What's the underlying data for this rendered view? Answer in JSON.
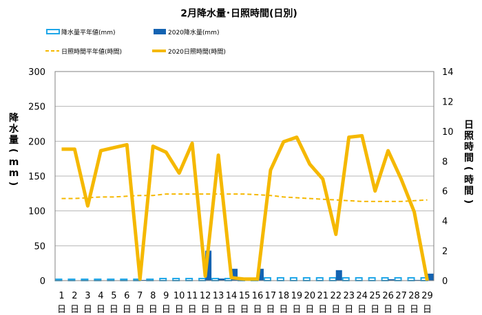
{
  "chart_data": {
    "type": "bar+line",
    "title": "2月降水量･日照時間(日別)",
    "xlabel": "",
    "ylabel": "降水量(mm)",
    "y2label": "日照時間(時間)",
    "ylim": [
      0,
      300
    ],
    "y2lim": [
      0,
      14
    ],
    "yticks": [
      "0",
      "50",
      "100",
      "150",
      "200",
      "250",
      "300"
    ],
    "y2ticks": [
      "0",
      "2",
      "4",
      "6",
      "8",
      "10",
      "12",
      "14"
    ],
    "categories": [
      "1",
      "2",
      "3",
      "4",
      "5",
      "6",
      "7",
      "8",
      "9",
      "10",
      "11",
      "12",
      "13",
      "14",
      "15",
      "16",
      "17",
      "18",
      "19",
      "20",
      "21",
      "22",
      "23",
      "24",
      "25",
      "26",
      "27",
      "28",
      "29"
    ],
    "day_suffix": "日",
    "legend_placement": "top",
    "grid": "horizontal",
    "series": [
      {
        "name": "降水量平年値(mm)",
        "type": "bar-outline",
        "axis": "left",
        "color": "#1ea6e8",
        "values": [
          2,
          2,
          2,
          2,
          2,
          2,
          2,
          2,
          3,
          3,
          3,
          3,
          3,
          3,
          3,
          3,
          4,
          4,
          4,
          4,
          4,
          4,
          4,
          4,
          4,
          4,
          4,
          4,
          4
        ]
      },
      {
        "name": "2020降水量(mm)",
        "type": "bar",
        "axis": "left",
        "color": "#1463b2",
        "values": [
          0,
          0,
          0,
          0,
          0,
          0,
          1,
          0,
          0,
          0,
          0,
          43,
          3,
          17,
          0,
          17,
          0,
          0,
          0,
          0,
          0,
          15,
          0,
          0,
          0,
          2,
          0,
          1,
          10
        ]
      },
      {
        "name": "日照時間平年値(時間)",
        "type": "line-dashed",
        "axis": "right",
        "color": "#f5b800",
        "values": [
          5.5,
          5.5,
          5.55,
          5.6,
          5.6,
          5.65,
          5.7,
          5.7,
          5.8,
          5.8,
          5.8,
          5.8,
          5.8,
          5.8,
          5.8,
          5.75,
          5.7,
          5.6,
          5.55,
          5.5,
          5.45,
          5.4,
          5.35,
          5.3,
          5.3,
          5.3,
          5.3,
          5.35,
          5.4
        ]
      },
      {
        "name": "2020日照時間(時間)",
        "type": "line",
        "axis": "right",
        "color": "#f5b800",
        "values": [
          8.8,
          8.8,
          5.0,
          8.7,
          8.9,
          9.1,
          0.1,
          9.0,
          8.6,
          7.2,
          9.2,
          0.3,
          8.4,
          0.2,
          0.1,
          0.1,
          7.4,
          9.3,
          9.6,
          7.8,
          6.8,
          3.1,
          9.6,
          9.7,
          6.0,
          8.7,
          6.8,
          4.6,
          0.0
        ]
      }
    ]
  }
}
